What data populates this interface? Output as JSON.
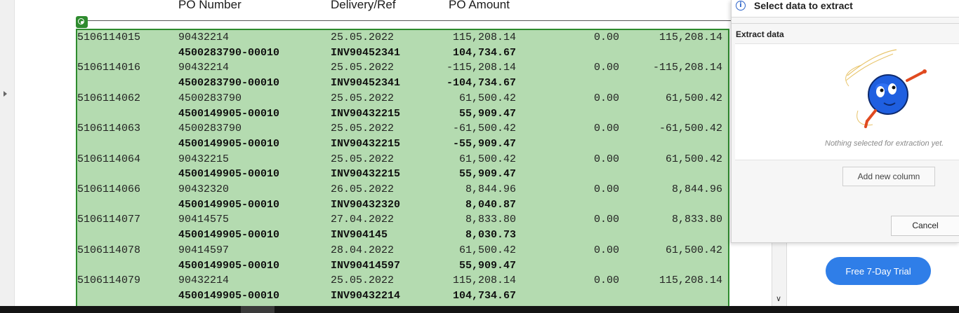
{
  "header": {
    "col_po_number": "PO Number",
    "col_delivery": "Delivery/Ref",
    "col_po_amount": "PO Amount"
  },
  "rows": [
    {
      "bold": false,
      "c1": "5106114015",
      "c2": "90432214",
      "c3": "25.05.2022",
      "c4": "115,208.14",
      "c5": "0.00",
      "c6": "115,208.14"
    },
    {
      "bold": true,
      "c1": "",
      "c2": "4500283790-00010",
      "c3": "INV90452341",
      "c4": "104,734.67",
      "c5": "",
      "c6": ""
    },
    {
      "bold": false,
      "c1": "5106114016",
      "c2": "90432214",
      "c3": "25.05.2022",
      "c4": "-115,208.14",
      "c5": "0.00",
      "c6": "-115,208.14"
    },
    {
      "bold": true,
      "c1": "",
      "c2": "4500283790-00010",
      "c3": "INV90452341",
      "c4": "-104,734.67",
      "c5": "",
      "c6": ""
    },
    {
      "bold": false,
      "c1": "5106114062",
      "c2": "4500283790",
      "c3": "25.05.2022",
      "c4": "61,500.42",
      "c5": "0.00",
      "c6": "61,500.42"
    },
    {
      "bold": true,
      "c1": "",
      "c2": "4500149905-00010",
      "c3": "INV90432215",
      "c4": "55,909.47",
      "c5": "",
      "c6": ""
    },
    {
      "bold": false,
      "c1": "5106114063",
      "c2": "4500283790",
      "c3": "25.05.2022",
      "c4": "-61,500.42",
      "c5": "0.00",
      "c6": "-61,500.42"
    },
    {
      "bold": true,
      "c1": "",
      "c2": "4500149905-00010",
      "c3": "INV90432215",
      "c4": "-55,909.47",
      "c5": "",
      "c6": ""
    },
    {
      "bold": false,
      "c1": "5106114064",
      "c2": "90432215",
      "c3": "25.05.2022",
      "c4": "61,500.42",
      "c5": "0.00",
      "c6": "61,500.42"
    },
    {
      "bold": true,
      "c1": "",
      "c2": "4500149905-00010",
      "c3": "INV90432215",
      "c4": "55,909.47",
      "c5": "",
      "c6": ""
    },
    {
      "bold": false,
      "c1": "5106114066",
      "c2": "90432320",
      "c3": "26.05.2022",
      "c4": "8,844.96",
      "c5": "0.00",
      "c6": "8,844.96"
    },
    {
      "bold": true,
      "c1": "",
      "c2": "4500149905-00010",
      "c3": "INV90432320",
      "c4": "8,040.87",
      "c5": "",
      "c6": ""
    },
    {
      "bold": false,
      "c1": "5106114077",
      "c2": "90414575",
      "c3": "27.04.2022",
      "c4": "8,833.80",
      "c5": "0.00",
      "c6": "8,833.80"
    },
    {
      "bold": true,
      "c1": "",
      "c2": "4500149905-00010",
      "c3": "INV904145",
      "c4": "8,030.73",
      "c5": "",
      "c6": ""
    },
    {
      "bold": false,
      "c1": "5106114078",
      "c2": "90414597",
      "c3": "28.04.2022",
      "c4": "61,500.42",
      "c5": "0.00",
      "c6": "61,500.42"
    },
    {
      "bold": true,
      "c1": "",
      "c2": "4500149905-00010",
      "c3": "INV90414597",
      "c4": "55,909.47",
      "c5": "",
      "c6": ""
    },
    {
      "bold": false,
      "c1": "5106114079",
      "c2": "90432214",
      "c3": "25.05.2022",
      "c4": "115,208.14",
      "c5": "0.00",
      "c6": "115,208.14"
    },
    {
      "bold": true,
      "c1": "",
      "c2": "4500149905-00010",
      "c3": "INV90432214",
      "c4": "104,734.67",
      "c5": "",
      "c6": ""
    }
  ],
  "panel": {
    "title": "Select data to extract",
    "extract_label": "Extract data",
    "empty_text": "Nothing selected for extraction yet.",
    "add_column_label": "Add new column",
    "cancel_label": "Cancel"
  },
  "trial_button_label": "Free 7-Day Trial",
  "icons": {
    "info": "info-icon",
    "target": "target-icon",
    "expand": "chevron-right-icon",
    "scroll_down": "chevron-down-icon",
    "mascot": "mascot-illustration"
  },
  "colors": {
    "selection_fill": "#b4dbb0",
    "selection_border": "#2e8b2e",
    "trial_button": "#2f7ee8",
    "info_blue": "#2a62c9"
  }
}
